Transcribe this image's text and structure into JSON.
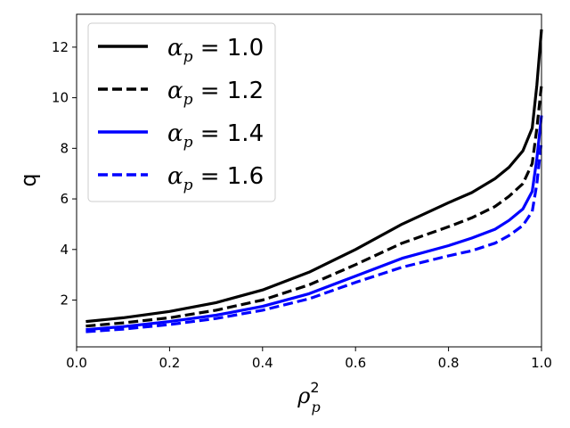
{
  "chart_data": {
    "type": "line",
    "title": "",
    "xlabel": {
      "base": "ρ",
      "sub": "p",
      "sup": "2"
    },
    "ylabel": "q",
    "xlim": [
      0.0,
      1.0
    ],
    "ylim": [
      0.15,
      13.3
    ],
    "xticks": [
      "0.0",
      "0.2",
      "0.4",
      "0.6",
      "0.8",
      "1.0"
    ],
    "yticks": [
      "2",
      "4",
      "6",
      "8",
      "10",
      "12"
    ],
    "grid": false,
    "legend_position": "top-left",
    "x": [
      0.02,
      0.1,
      0.2,
      0.3,
      0.4,
      0.5,
      0.6,
      0.7,
      0.8,
      0.85,
      0.9,
      0.93,
      0.96,
      0.98,
      0.99,
      1.0
    ],
    "series": [
      {
        "name": {
          "sym": "α",
          "sub": "p",
          "rest": " = 1.0"
        },
        "color": "#000000",
        "dash": "solid",
        "values": [
          1.15,
          1.3,
          1.55,
          1.9,
          2.4,
          3.1,
          4.0,
          5.0,
          5.85,
          6.25,
          6.8,
          7.25,
          7.9,
          8.8,
          10.5,
          12.7
        ]
      },
      {
        "name": {
          "sym": "α",
          "sub": "p",
          "rest": " = 1.2"
        },
        "color": "#000000",
        "dash": "dashed",
        "values": [
          0.97,
          1.1,
          1.3,
          1.6,
          2.0,
          2.6,
          3.4,
          4.25,
          4.9,
          5.25,
          5.7,
          6.1,
          6.6,
          7.4,
          8.8,
          10.5
        ]
      },
      {
        "name": {
          "sym": "α",
          "sub": "p",
          "rest": " = 1.4"
        },
        "color": "#0000ff",
        "dash": "solid",
        "values": [
          0.83,
          0.95,
          1.15,
          1.4,
          1.75,
          2.25,
          2.95,
          3.65,
          4.15,
          4.45,
          4.8,
          5.15,
          5.6,
          6.3,
          7.6,
          9.3
        ]
      },
      {
        "name": {
          "sym": "α",
          "sub": "p",
          "rest": " = 1.6"
        },
        "color": "#0000ff",
        "dash": "dashed",
        "values": [
          0.75,
          0.85,
          1.03,
          1.27,
          1.6,
          2.05,
          2.7,
          3.3,
          3.75,
          3.95,
          4.25,
          4.55,
          4.95,
          5.5,
          6.6,
          8.3
        ]
      }
    ]
  }
}
